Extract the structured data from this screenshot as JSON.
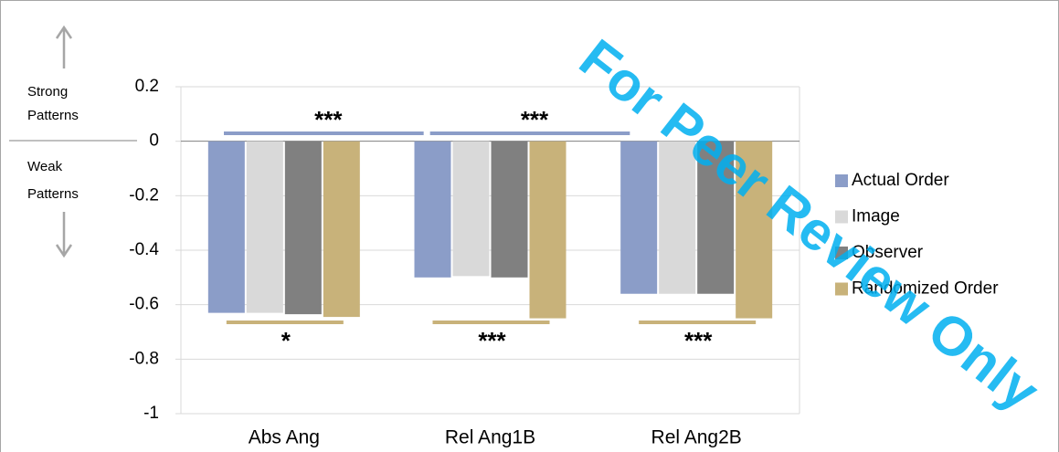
{
  "chart_data": {
    "type": "bar",
    "categories": [
      "Abs Ang",
      "Rel Ang1B",
      "Rel Ang2B"
    ],
    "series": [
      {
        "name": "Actual Order",
        "color": "#8b9dc8",
        "values": [
          -0.63,
          -0.5,
          -0.56
        ]
      },
      {
        "name": "Image",
        "color": "#d9d9d9",
        "values": [
          -0.63,
          -0.495,
          -0.56
        ]
      },
      {
        "name": "Observer",
        "color": "#808080",
        "values": [
          -0.635,
          -0.5,
          -0.56
        ]
      },
      {
        "name": "Randomized Order",
        "color": "#c8b27a",
        "values": [
          -0.645,
          -0.65,
          -0.65
        ]
      }
    ],
    "ylim": [
      -1,
      0.2
    ],
    "yticks": [
      -1,
      -0.8,
      -0.6,
      -0.4,
      -0.2,
      0,
      0.2
    ],
    "grid": true,
    "legend": "right",
    "side_labels": [
      [
        "Strong",
        "Patterns"
      ],
      [
        "Weak",
        "Patterns"
      ]
    ],
    "significance_top": [
      "***",
      "***"
    ],
    "significance_bottom": [
      "*",
      "***",
      "***"
    ],
    "watermark": "For Peer Review Only"
  }
}
